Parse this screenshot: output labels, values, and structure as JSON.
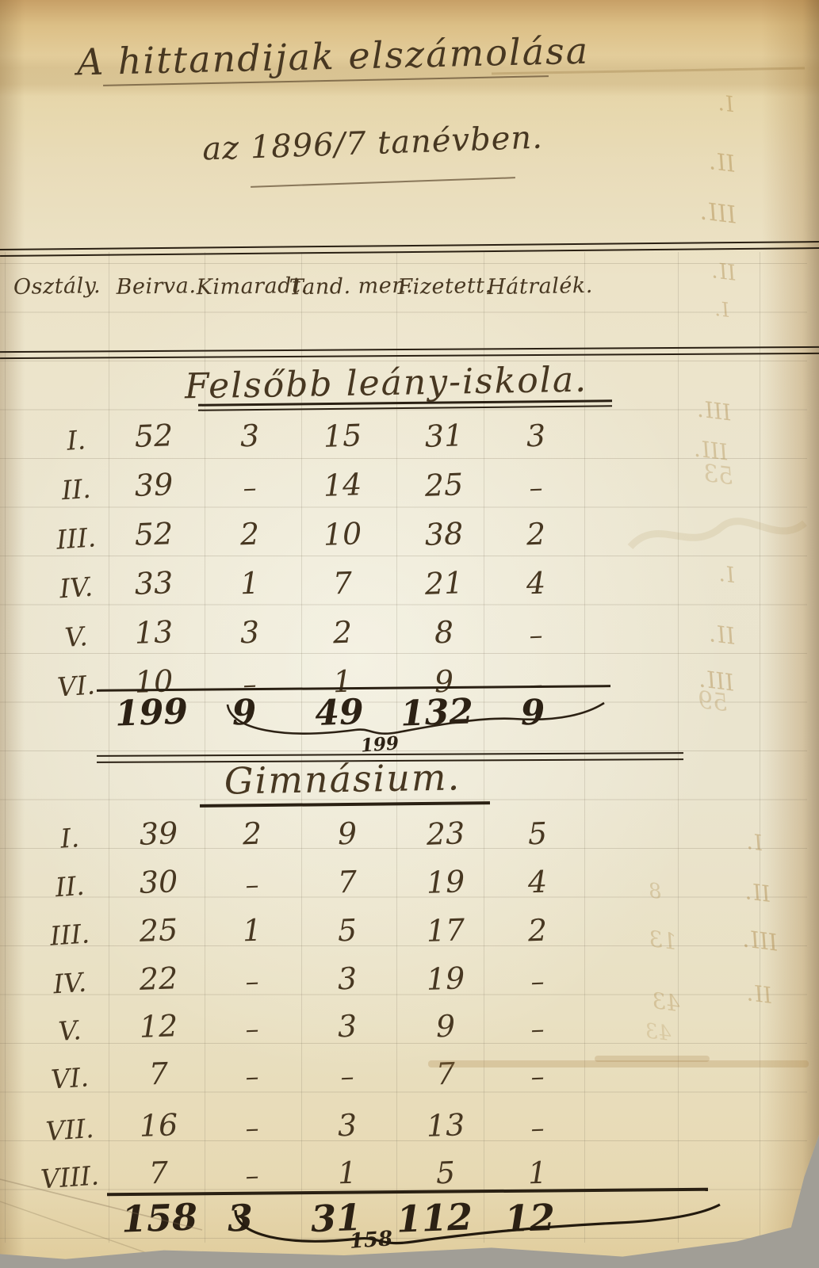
{
  "title": {
    "text": "A hittandijak elszámolása",
    "subtitle": "az 1896/7 tanévben."
  },
  "table": {
    "columns": [
      "Osztály.",
      "Beirva.",
      "Kimaradt.",
      "Tand. men.",
      "Fizetett.",
      "Hátralék."
    ],
    "sections": [
      {
        "name": "Felsőbb leány-iskola.",
        "rows": [
          {
            "label": "I.",
            "values": [
              "52",
              "3",
              "15",
              "31",
              "3"
            ]
          },
          {
            "label": "II.",
            "values": [
              "39",
              "–",
              "14",
              "25",
              "–"
            ]
          },
          {
            "label": "III.",
            "values": [
              "52",
              "2",
              "10",
              "38",
              "2"
            ]
          },
          {
            "label": "IV.",
            "values": [
              "33",
              "1",
              "7",
              "21",
              "4"
            ]
          },
          {
            "label": "V.",
            "values": [
              "13",
              "3",
              "2",
              "8",
              "–"
            ]
          },
          {
            "label": "VI.",
            "values": [
              "10",
              "–",
              "1",
              "9",
              "–"
            ]
          }
        ],
        "totals": [
          "199",
          "9",
          "49",
          "132",
          "9"
        ],
        "check_total": "199"
      },
      {
        "name": "Gimnásium.",
        "rows": [
          {
            "label": "I.",
            "values": [
              "39",
              "2",
              "9",
              "23",
              "5"
            ]
          },
          {
            "label": "II.",
            "values": [
              "30",
              "–",
              "7",
              "19",
              "4"
            ]
          },
          {
            "label": "III.",
            "values": [
              "25",
              "1",
              "5",
              "17",
              "2"
            ]
          },
          {
            "label": "IV.",
            "values": [
              "22",
              "–",
              "3",
              "19",
              "–"
            ]
          },
          {
            "label": "V.",
            "values": [
              "12",
              "–",
              "3",
              "9",
              "–"
            ]
          },
          {
            "label": "VI.",
            "values": [
              "7",
              "–",
              "–",
              "7",
              "–"
            ]
          },
          {
            "label": "VII.",
            "values": [
              "16",
              "–",
              "3",
              "13",
              "–"
            ]
          },
          {
            "label": "VIII.",
            "values": [
              "7",
              "–",
              "1",
              "5",
              "1"
            ]
          }
        ],
        "totals": [
          "158",
          "3",
          "31",
          "112",
          "12"
        ],
        "check_total": "158"
      }
    ]
  },
  "ghost_numerals": [
    "I.",
    "II.",
    "III.",
    "II.",
    "I.",
    "III.",
    "III.",
    "53",
    "I.",
    "II.",
    "III.",
    "59",
    "I.",
    "II.",
    "III.",
    "II.",
    "8",
    "13",
    "43",
    "43"
  ],
  "colors": {
    "ink": "#473721",
    "ink_heavy": "#2c2114",
    "paper": "#ebe5cf",
    "ghost_ink": "#a8823f"
  }
}
